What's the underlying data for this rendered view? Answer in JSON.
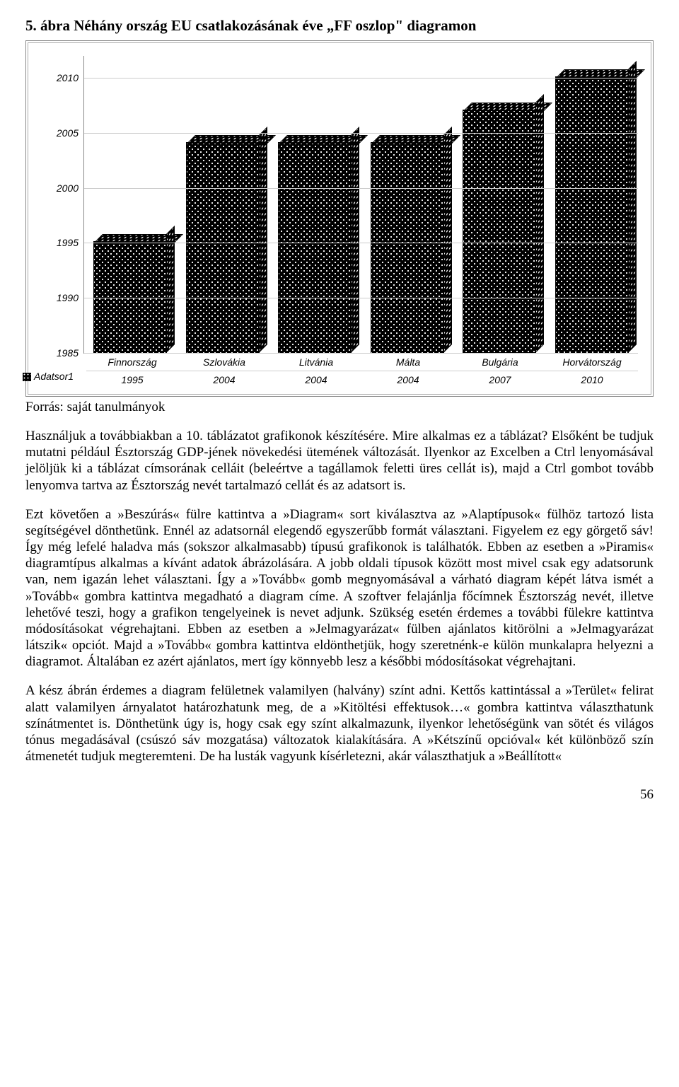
{
  "figure": {
    "title": "5. ábra Néhány ország EU csatlakozásának éve „FF oszlop\" diagramon",
    "type": "bar",
    "categories": [
      "Finnország",
      "Szlovákia",
      "Litvánia",
      "Málta",
      "Bulgária",
      "Horvátország"
    ],
    "values": [
      1995,
      2004,
      2004,
      2004,
      2007,
      2010
    ],
    "series_label": "Adatsor1",
    "ylim": [
      1985,
      2012
    ],
    "yticks": [
      1985,
      1990,
      1995,
      2000,
      2005,
      2010
    ],
    "bar_color": "#000000",
    "dot_color": "#ffffff",
    "background_color": "#ffffff",
    "grid_color": "#cccccc",
    "label_fontsize": 14,
    "label_fontstyle": "italic"
  },
  "source": "Forrás: saját tanulmányok",
  "para1": "Használjuk a továbbiakban a 10. táblázatot grafikonok készítésére. Mire alkalmas ez a táblázat? Elsőként be tudjuk mutatni például Észtország GDP-jének növekedési ütemének változását. Ilyenkor az Excelben a Ctrl lenyomásával jelöljük ki a táblázat címsorának celláit (beleértve a tagállamok feletti üres cellát is), majd a Ctrl gombot tovább lenyomva tartva az Észtország nevét tartalmazó cellát és az adatsort is.",
  "para2": "Ezt követően a »Beszúrás« fülre kattintva a »Diagram« sort kiválasztva az »Alaptípusok« fülhöz tartozó lista segítségével dönthetünk. Ennél az adatsornál elegendő egyszerűbb formát választani. Figyelem ez egy görgető sáv! Így még lefelé haladva más (sokszor alkalmasabb) típusú grafikonok is találhatók. Ebben az esetben a »Piramis« diagramtípus alkalmas a kívánt adatok ábrázolására. A jobb oldali típusok között most  mivel csak egy adatsorunk van, nem igazán lehet választani. Így a »Tovább« gomb megnyomásával a várható diagram képét látva ismét a »Tovább« gombra kattintva megadható a diagram címe. A szoftver felajánlja főcímnek Észtország nevét, illetve lehetővé teszi, hogy a grafikon tengelyeinek is nevet adjunk. Szükség esetén érdemes a további fülekre kattintva módosításokat végrehajtani. Ebben az esetben a »Jelmagyarázat« fülben ajánlatos kitörölni a »Jelmagyarázat látszik« opciót. Majd a »Tovább« gombra kattintva eldönthetjük, hogy szeretnénk-e külön munkalapra helyezni a diagramot. Általában ez azért ajánlatos, mert így könnyebb lesz a későbbi módosításokat végrehajtani.",
  "para3": "A kész ábrán érdemes a diagram felületnek valamilyen (halvány) színt adni. Kettős kattintással a »Terület« felirat alatt valamilyen árnyalatot határozhatunk meg, de a »Kitöltési effektusok…« gombra kattintva választhatunk színátmentet is. Dönthetünk úgy is, hogy csak egy színt alkalmazunk, ilyenkor lehetőségünk van sötét és világos tónus megadásával (csúszó sáv mozgatása) változatok kialakítására. A »Kétszínű opcióval« két különböző szín átmenetét tudjuk megteremteni. De ha lusták vagyunk kísérletezni, akár választhatjuk a »Beállított«",
  "page_number": "56"
}
